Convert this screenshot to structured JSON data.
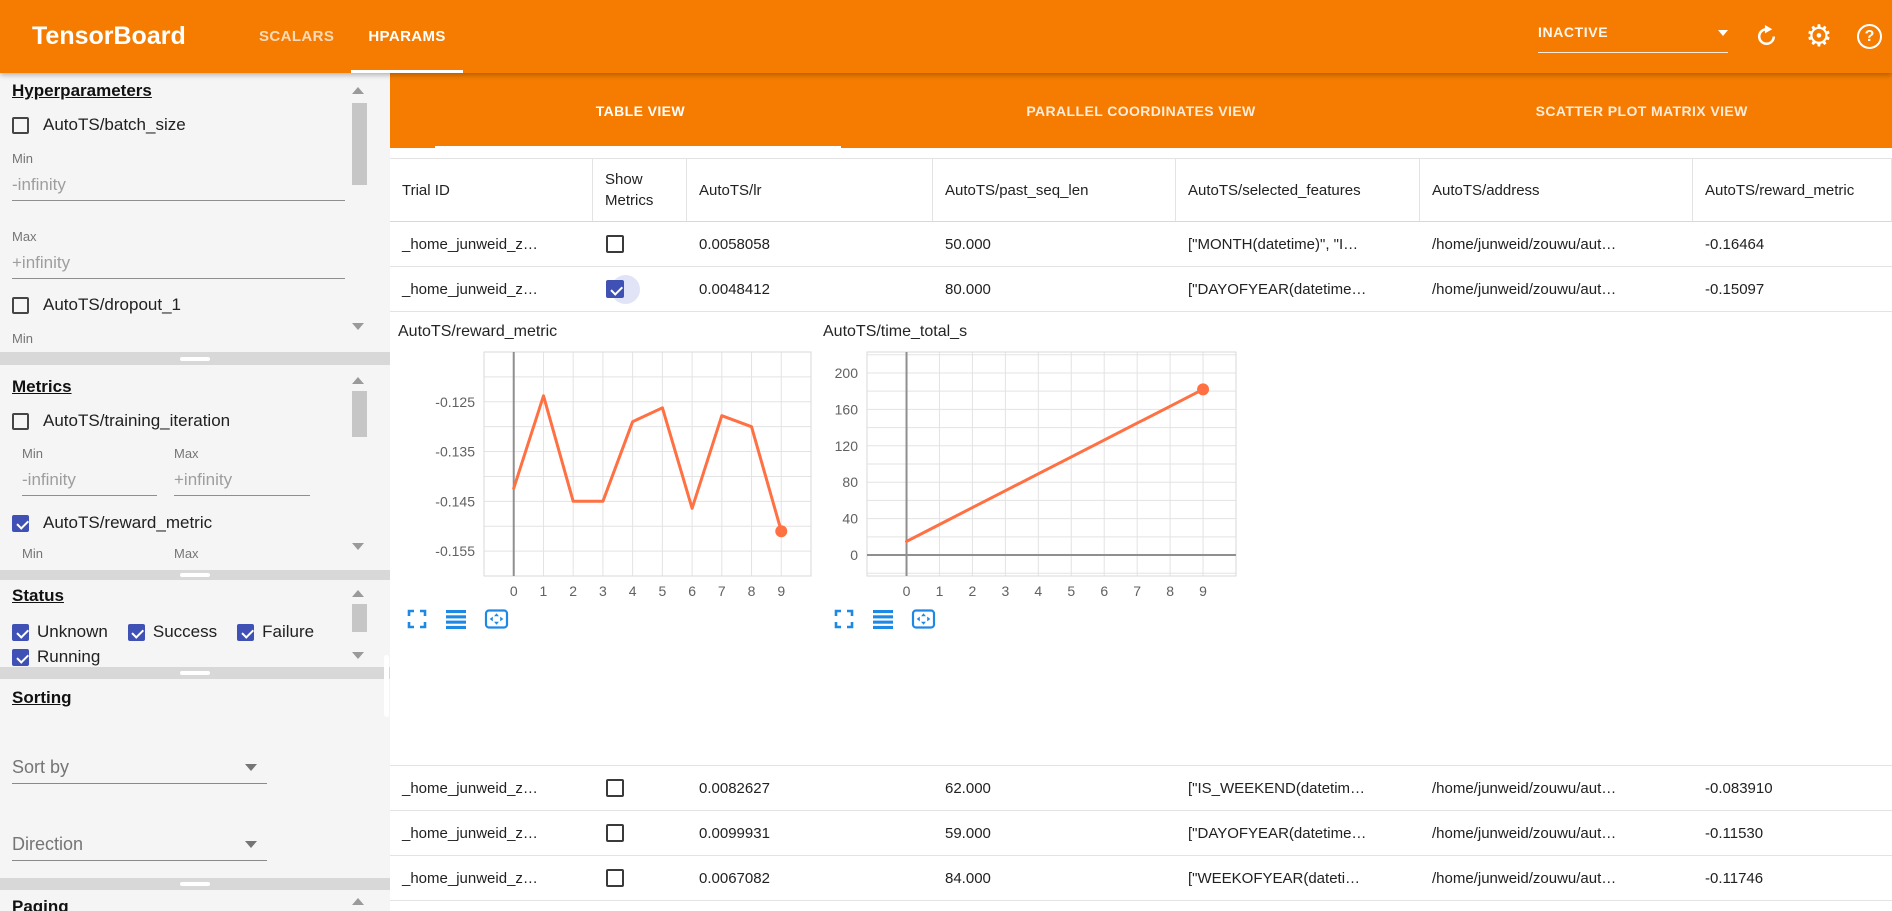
{
  "app_bar": {
    "title": "TensorBoard",
    "nav_tabs": [
      {
        "label": "SCALARS",
        "active": false
      },
      {
        "label": "HPARAMS",
        "active": true
      }
    ],
    "status_select": {
      "value": "INACTIVE"
    },
    "help_glyph": "?",
    "gear_glyph": "⚙"
  },
  "sidebar": {
    "hyperparameters": {
      "title": "Hyperparameters",
      "items": [
        {
          "label": "AutoTS/batch_size",
          "checked": false
        },
        {
          "label": "AutoTS/dropout_1",
          "checked": false
        }
      ],
      "batch_min_label": "Min",
      "batch_min": "-infinity",
      "batch_max_label": "Max",
      "batch_max": "+infinity",
      "dropout_min_label": "Min"
    },
    "metrics": {
      "title": "Metrics",
      "items": [
        {
          "label": "AutoTS/training_iteration",
          "checked": false,
          "min_label": "Min",
          "min": "-infinity",
          "max_label": "Max",
          "max": "+infinity"
        },
        {
          "label": "AutoTS/reward_metric",
          "checked": true,
          "min_label": "Min",
          "max_label": "Max"
        }
      ]
    },
    "status": {
      "title": "Status",
      "items": [
        {
          "label": "Unknown",
          "checked": true
        },
        {
          "label": "Success",
          "checked": true
        },
        {
          "label": "Failure",
          "checked": true
        },
        {
          "label": "Running",
          "checked": true
        }
      ]
    },
    "sorting": {
      "title": "Sorting",
      "sort_by_label": "Sort by",
      "direction_label": "Direction"
    },
    "paging": {
      "title": "Paging"
    }
  },
  "main": {
    "view_tabs": [
      {
        "label": "TABLE VIEW",
        "active": true
      },
      {
        "label": "PARALLEL COORDINATES VIEW",
        "active": false
      },
      {
        "label": "SCATTER PLOT MATRIX VIEW",
        "active": false
      }
    ],
    "table": {
      "columns": [
        "Trial ID",
        "Show Metrics",
        "AutoTS/lr",
        "AutoTS/past_seq_len",
        "AutoTS/selected_features",
        "AutoTS/address",
        "AutoTS/reward_metric"
      ],
      "rows": [
        {
          "trial_id": "_home_junweid_z…",
          "show_metrics": false,
          "lr": "0.0058058",
          "past_seq_len": "50.000",
          "selected_features": "[\"MONTH(datetime)\", \"I…",
          "address": "/home/junweid/zouwu/aut…",
          "reward_metric": "-0.16464"
        },
        {
          "trial_id": "_home_junweid_z…",
          "show_metrics": true,
          "lr": "0.0048412",
          "past_seq_len": "80.000",
          "selected_features": "[\"DAYOFYEAR(datetime…",
          "address": "/home/junweid/zouwu/aut…",
          "reward_metric": "-0.15097"
        },
        {
          "trial_id": "_home_junweid_z…",
          "show_metrics": false,
          "lr": "0.0082627",
          "past_seq_len": "62.000",
          "selected_features": "[\"IS_WEEKEND(datetim…",
          "address": "/home/junweid/zouwu/aut…",
          "reward_metric": "-0.083910"
        },
        {
          "trial_id": "_home_junweid_z…",
          "show_metrics": false,
          "lr": "0.0099931",
          "past_seq_len": "59.000",
          "selected_features": "[\"DAYOFYEAR(datetime…",
          "address": "/home/junweid/zouwu/aut…",
          "reward_metric": "-0.11530"
        },
        {
          "trial_id": "_home_junweid_z…",
          "show_metrics": false,
          "lr": "0.0067082",
          "past_seq_len": "84.000",
          "selected_features": "[\"WEEKOFYEAR(dateti…",
          "address": "/home/junweid/zouwu/aut…",
          "reward_metric": "-0.11746"
        }
      ]
    }
  },
  "colors": {
    "accent_orange": "#f57c00",
    "checkbox_blue": "#3f51b5",
    "chart_line": "#ff7043",
    "tool_icon_blue": "#1e88e5"
  },
  "chart_data": [
    {
      "type": "line",
      "title": "AutoTS/reward_metric",
      "x": [
        0,
        1,
        2,
        3,
        4,
        5,
        6,
        7,
        8,
        9
      ],
      "values": [
        -0.1424,
        -0.1238,
        -0.145,
        -0.145,
        -0.129,
        -0.1262,
        -0.1464,
        -0.1278,
        -0.13,
        -0.151
      ],
      "xlim": [
        -1,
        10
      ],
      "ylim": [
        -0.16,
        -0.115
      ],
      "xticks": [
        0,
        1,
        2,
        3,
        4,
        5,
        6,
        7,
        8,
        9
      ],
      "yticks": [
        -0.125,
        -0.135,
        -0.145,
        -0.155
      ],
      "ytick_labels": [
        "-0.125",
        "-0.135",
        "-0.145",
        "-0.155"
      ],
      "y_minor_step": 0.005,
      "show_x_axis_line": false,
      "show_y_axis_line": true,
      "line_color": "#ff7043",
      "end_dot": true,
      "grid": true,
      "legend": "none"
    },
    {
      "type": "line",
      "title": "AutoTS/time_total_s",
      "x": [
        0,
        1,
        2,
        3,
        4,
        5,
        6,
        7,
        8,
        9
      ],
      "values": [
        15,
        33.6,
        52.1,
        70.7,
        89.2,
        107.8,
        126.3,
        144.9,
        163.4,
        182
      ],
      "xlim": [
        -1.2,
        10
      ],
      "ylim": [
        -23,
        223
      ],
      "xticks": [
        0,
        1,
        2,
        3,
        4,
        5,
        6,
        7,
        8,
        9
      ],
      "yticks": [
        0,
        40,
        80,
        120,
        160,
        200
      ],
      "ytick_labels": [
        "0",
        "40",
        "80",
        "120",
        "160",
        "200"
      ],
      "y_minor_step": 20,
      "show_x_axis_line": true,
      "show_y_axis_line": true,
      "line_color": "#ff7043",
      "end_dot": true,
      "grid": true,
      "legend": "none"
    }
  ]
}
